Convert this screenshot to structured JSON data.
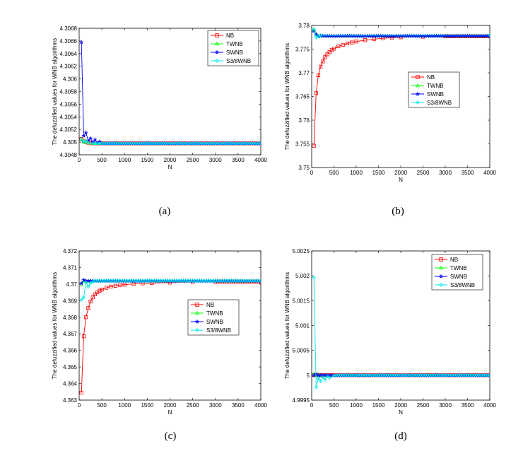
{
  "chart_data": [
    {
      "type": "line",
      "caption": "(a)",
      "xlabel": "N",
      "ylabel": "The defuzzified values for WNB algorithms",
      "xlim": [
        0,
        4000
      ],
      "ylim": [
        4.3048,
        4.3068
      ],
      "xticks": [
        "0",
        "500",
        "1000",
        "1500",
        "2000",
        "2500",
        "3000",
        "3500",
        "4000"
      ],
      "yticks": [
        "4.3048",
        "4.305",
        "4.3052",
        "4.3054",
        "4.3056",
        "4.3058",
        "4.306",
        "4.3062",
        "4.3064",
        "4.3066",
        "4.3068"
      ],
      "legend_position": "top-right",
      "series": [
        {
          "name": "NB",
          "color": "#ff0000",
          "marker": "square",
          "converged": 4.30498,
          "points": [
            [
              50,
              4.30505
            ],
            [
              100,
              4.30502
            ],
            [
              150,
              4.305
            ],
            [
              200,
              4.30499
            ],
            [
              250,
              4.30499
            ],
            [
              300,
              4.30498
            ],
            [
              400,
              4.30498
            ]
          ]
        },
        {
          "name": "TWNB",
          "color": "#00ff00",
          "marker": "triangle",
          "converged": 4.30498,
          "points": [
            [
              50,
              4.30505
            ],
            [
              100,
              4.305
            ],
            [
              150,
              4.30502
            ],
            [
              200,
              4.30499
            ],
            [
              300,
              4.30498
            ]
          ]
        },
        {
          "name": "SWNB",
          "color": "#0000ff",
          "marker": "star",
          "converged": 4.30498,
          "points": [
            [
              50,
              4.30658
            ],
            [
              100,
              4.3051
            ],
            [
              150,
              4.30515
            ],
            [
              200,
              4.30502
            ],
            [
              250,
              4.30506
            ],
            [
              300,
              4.305
            ],
            [
              350,
              4.30504
            ],
            [
              400,
              4.30499
            ],
            [
              450,
              4.30501
            ],
            [
              500,
              4.30498
            ]
          ]
        },
        {
          "name": "S3/8WNB",
          "color": "#00e5e5",
          "marker": "diamond",
          "converged": 4.30498,
          "points": [
            [
              50,
              4.30504
            ],
            [
              100,
              4.305
            ],
            [
              150,
              4.30502
            ],
            [
              200,
              4.30499
            ],
            [
              300,
              4.30498
            ]
          ]
        }
      ]
    },
    {
      "type": "line",
      "caption": "(b)",
      "xlabel": "N",
      "ylabel": "The defuzzified values for WNB algorithms",
      "xlim": [
        0,
        4000
      ],
      "ylim": [
        3.75,
        3.78
      ],
      "xticks": [
        "0",
        "500",
        "1000",
        "1500",
        "2000",
        "2500",
        "3000",
        "3500",
        "4000"
      ],
      "yticks": [
        "3.75",
        "3.755",
        "3.76",
        "3.765",
        "3.77",
        "3.775",
        "3.78"
      ],
      "legend_position": "center-right",
      "series": [
        {
          "name": "NB",
          "color": "#ff0000",
          "marker": "square",
          "converged": 3.7777,
          "points": [
            [
              50,
              3.7546
            ],
            [
              100,
              3.7657
            ],
            [
              150,
              3.7695
            ],
            [
              200,
              3.7713
            ],
            [
              250,
              3.7724
            ],
            [
              300,
              3.7733
            ],
            [
              350,
              3.7739
            ],
            [
              400,
              3.7744
            ],
            [
              450,
              3.7748
            ],
            [
              500,
              3.7751
            ],
            [
              600,
              3.7756
            ],
            [
              700,
              3.7759
            ],
            [
              800,
              3.7762
            ],
            [
              900,
              3.7764
            ],
            [
              1000,
              3.7766
            ],
            [
              1200,
              3.7769
            ],
            [
              1400,
              3.7771
            ],
            [
              1600,
              3.7773
            ],
            [
              1800,
              3.7774
            ],
            [
              2000,
              3.7775
            ],
            [
              2500,
              3.7776
            ],
            [
              3000,
              3.7777
            ]
          ]
        },
        {
          "name": "TWNB",
          "color": "#00ff00",
          "marker": "triangle",
          "converged": 3.7778,
          "points": [
            [
              50,
              3.779
            ],
            [
              100,
              3.7782
            ],
            [
              150,
              3.7777
            ]
          ]
        },
        {
          "name": "SWNB",
          "color": "#0000ff",
          "marker": "star",
          "converged": 3.7778,
          "points": [
            [
              50,
              3.7788
            ],
            [
              100,
              3.7781
            ],
            [
              150,
              3.7777
            ]
          ]
        },
        {
          "name": "S3/8WNB",
          "color": "#00e5e5",
          "marker": "diamond",
          "converged": 3.7779,
          "points": [
            [
              50,
              3.7792
            ],
            [
              100,
              3.7775
            ],
            [
              150,
              3.7777
            ],
            [
              200,
              3.7779
            ],
            [
              4000,
              3.778
            ]
          ]
        }
      ]
    },
    {
      "type": "line",
      "caption": "(c)",
      "xlabel": "N",
      "ylabel": "The defuzzified values for WNB algorithms",
      "xlim": [
        0,
        4000
      ],
      "ylim": [
        4.363,
        4.372
      ],
      "xticks": [
        "0",
        "500",
        "1000",
        "1500",
        "2000",
        "2500",
        "3000",
        "3500",
        "4000"
      ],
      "yticks": [
        "4.363",
        "4.364",
        "4.365",
        "4.366",
        "4.367",
        "4.368",
        "4.369",
        "4.37",
        "4.371",
        "4.372"
      ],
      "legend_position": "center-right",
      "series": [
        {
          "name": "NB",
          "color": "#ff0000",
          "marker": "square",
          "converged": 4.37015,
          "points": [
            [
              50,
              4.36345
            ],
            [
              100,
              4.36685
            ],
            [
              150,
              4.368
            ],
            [
              200,
              4.36855
            ],
            [
              250,
              4.36895
            ],
            [
              300,
              4.3692
            ],
            [
              350,
              4.36938
            ],
            [
              400,
              4.3695
            ],
            [
              450,
              4.3696
            ],
            [
              500,
              4.36967
            ],
            [
              600,
              4.36978
            ],
            [
              700,
              4.36985
            ],
            [
              800,
              4.3699
            ],
            [
              900,
              4.36994
            ],
            [
              1000,
              4.36997
            ],
            [
              1200,
              4.37001
            ],
            [
              1400,
              4.37004
            ],
            [
              1600,
              4.37006
            ],
            [
              2000,
              4.37009
            ],
            [
              2500,
              4.37012
            ],
            [
              3000,
              4.37014
            ]
          ]
        },
        {
          "name": "TWNB",
          "color": "#00ff00",
          "marker": "triangle",
          "converged": 4.3702,
          "points": [
            [
              50,
              4.37
            ],
            [
              100,
              4.3702
            ],
            [
              150,
              4.37015
            ]
          ]
        },
        {
          "name": "SWNB",
          "color": "#0000ff",
          "marker": "star",
          "converged": 4.3702,
          "points": [
            [
              50,
              4.37005
            ],
            [
              100,
              4.37025
            ],
            [
              150,
              4.3702
            ]
          ]
        },
        {
          "name": "S3/8WNB",
          "color": "#00e5e5",
          "marker": "diamond",
          "converged": 4.3702,
          "points": [
            [
              50,
              4.36905
            ],
            [
              100,
              4.3692
            ],
            [
              150,
              4.3701
            ],
            [
              200,
              4.36985
            ],
            [
              250,
              4.37005
            ],
            [
              300,
              4.37015
            ]
          ]
        }
      ]
    },
    {
      "type": "line",
      "caption": "(d)",
      "xlabel": "N",
      "ylabel": "The defuzzified values for WNB algorithms",
      "xlim": [
        0,
        4000
      ],
      "ylim": [
        4.9995,
        5.0025
      ],
      "xticks": [
        "0",
        "500",
        "1000",
        "1500",
        "2000",
        "2500",
        "3000",
        "3500",
        "4000"
      ],
      "yticks": [
        "4.9995",
        "5",
        "5.0005",
        "5.001",
        "5.0015",
        "5.002",
        "5.0025"
      ],
      "legend_position": "top-right",
      "series": [
        {
          "name": "NB",
          "color": "#ff0000",
          "marker": "square",
          "converged": 5.0,
          "points": [
            [
              50,
              5.0
            ],
            [
              100,
              5.00001
            ],
            [
              150,
              5.0
            ]
          ]
        },
        {
          "name": "TWNB",
          "color": "#00ff00",
          "marker": "triangle",
          "converged": 5.0,
          "points": [
            [
              50,
              5.00003
            ],
            [
              100,
              5.0
            ],
            [
              150,
              5.00001
            ]
          ]
        },
        {
          "name": "SWNB",
          "color": "#0000ff",
          "marker": "star",
          "converged": 5.0,
          "points": [
            [
              50,
              5.0
            ],
            [
              100,
              5.00002
            ],
            [
              150,
              5.0
            ]
          ]
        },
        {
          "name": "S3/8WNB",
          "color": "#00e5e5",
          "marker": "diamond",
          "converged": 5.0,
          "points": [
            [
              50,
              5.00197
            ],
            [
              100,
              4.99976
            ],
            [
              150,
              4.99994
            ],
            [
              200,
              4.99988
            ],
            [
              250,
              4.99996
            ],
            [
              300,
              4.99991
            ],
            [
              350,
              4.99998
            ],
            [
              400,
              4.99995
            ],
            [
              500,
              4.99999
            ]
          ]
        }
      ]
    }
  ]
}
